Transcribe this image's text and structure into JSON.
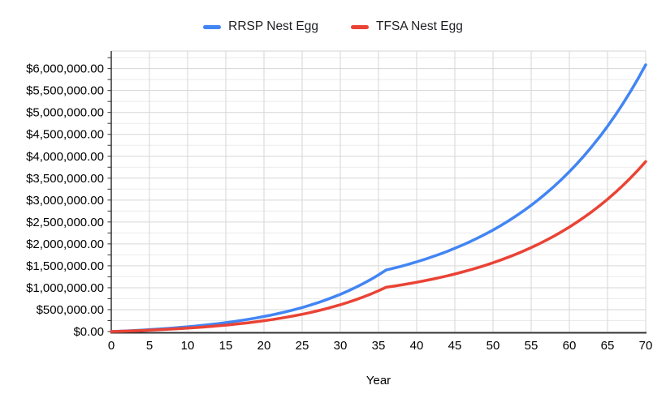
{
  "chart_data": {
    "type": "line",
    "title": "",
    "xlabel": "Year",
    "ylabel": "",
    "legend_position": "top",
    "grid": true,
    "x_min": 0,
    "x_max": 70,
    "x_ticks": [
      0,
      5,
      10,
      15,
      20,
      25,
      30,
      35,
      40,
      45,
      50,
      55,
      60,
      65,
      70
    ],
    "y_min": 0,
    "y_max": 6400000,
    "y_major_step": 500000,
    "y_minor_step": 250000,
    "y_tick_labels": [
      "$0.00",
      "$500,000.00",
      "$1,000,000.00",
      "$1,500,000.00",
      "$2,000,000.00",
      "$2,500,000.00",
      "$3,000,000.00",
      "$3,500,000.00",
      "$4,000,000.00",
      "$4,500,000.00",
      "$5,000,000.00",
      "$5,500,000.00",
      "$6,000,000.00"
    ],
    "x_note": "x value in years equals array index, 0 through 70",
    "series": [
      {
        "name": "RRSP Nest Egg",
        "color": "#4285F4",
        "values": [
          0,
          7500,
          15600,
          24300,
          33800,
          44000,
          55000,
          66900,
          79800,
          93700,
          108600,
          124800,
          142300,
          161200,
          181600,
          203600,
          227400,
          253100,
          280900,
          310800,
          343200,
          378200,
          415900,
          456700,
          500700,
          548300,
          599700,
          655100,
          715000,
          779700,
          849600,
          925100,
          1006600,
          1094600,
          1189700,
          1292400,
          1403300,
          1446000,
          1491300,
          1539600,
          1590800,
          1645200,
          1703000,
          1764500,
          1829700,
          1899100,
          1972800,
          2051100,
          2134300,
          2222700,
          2316600,
          2416400,
          2522400,
          2635100,
          2754800,
          2881900,
          3017100,
          3160600,
          3313200,
          3475200,
          3647400,
          3830400,
          4024800,
          4231400,
          4450800,
          4684000,
          4931700,
          5195000,
          5474600,
          5771800,
          6087500
        ]
      },
      {
        "name": "TFSA Nest Egg",
        "color": "#EA4335",
        "values": [
          0,
          5400,
          11200,
          17500,
          24300,
          31700,
          39600,
          48200,
          57400,
          67400,
          78200,
          89900,
          102500,
          116100,
          130800,
          146600,
          163800,
          182300,
          202200,
          223800,
          247100,
          272300,
          299500,
          328800,
          360500,
          394800,
          431800,
          471700,
          514800,
          561400,
          611700,
          666100,
          724800,
          788100,
          856600,
          930500,
          1010400,
          1036500,
          1064300,
          1093800,
          1125200,
          1158500,
          1193900,
          1231500,
          1271500,
          1313900,
          1359100,
          1407000,
          1457900,
          1512100,
          1569600,
          1630700,
          1695600,
          1764600,
          1837800,
          1915700,
          1998400,
          2086300,
          2179700,
          2279000,
          2384400,
          2496400,
          2615500,
          2741900,
          2876300,
          3019100,
          3170800,
          3331900,
          3503200,
          3685100,
          3878400
        ]
      }
    ]
  }
}
